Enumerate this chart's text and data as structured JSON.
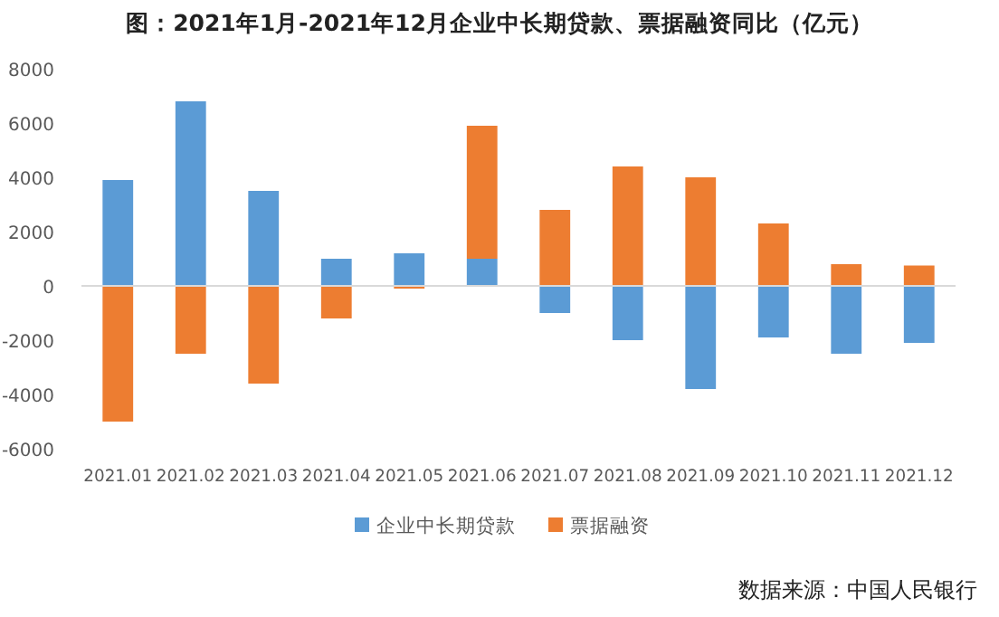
{
  "chart_data": {
    "type": "bar",
    "stacked": true,
    "title": "图：2021年1月-2021年12月企业中长期贷款、票据融资同比（亿元）",
    "categories": [
      "2021.01",
      "2021.02",
      "2021.03",
      "2021.04",
      "2021.05",
      "2021.06",
      "2021.07",
      "2021.08",
      "2021.09",
      "2021.10",
      "2021.11",
      "2021.12"
    ],
    "series": [
      {
        "name": "企业中长期贷款",
        "color": "#5b9bd5",
        "values": [
          3900,
          6800,
          3500,
          1000,
          1200,
          1000,
          -1000,
          -2000,
          -3800,
          -1900,
          -2500,
          -2100
        ]
      },
      {
        "name": "票据融资",
        "color": "#ed7d31",
        "values": [
          -5000,
          -2500,
          -3600,
          -1200,
          -100,
          4900,
          2800,
          4400,
          4000,
          2300,
          800,
          750
        ]
      }
    ],
    "ylim": [
      -6000,
      8000
    ],
    "yticks": [
      -6000,
      -4000,
      -2000,
      0,
      2000,
      4000,
      6000,
      8000
    ],
    "legend": "bottom",
    "annotations": [
      "数据来源：中国人民银行"
    ]
  }
}
